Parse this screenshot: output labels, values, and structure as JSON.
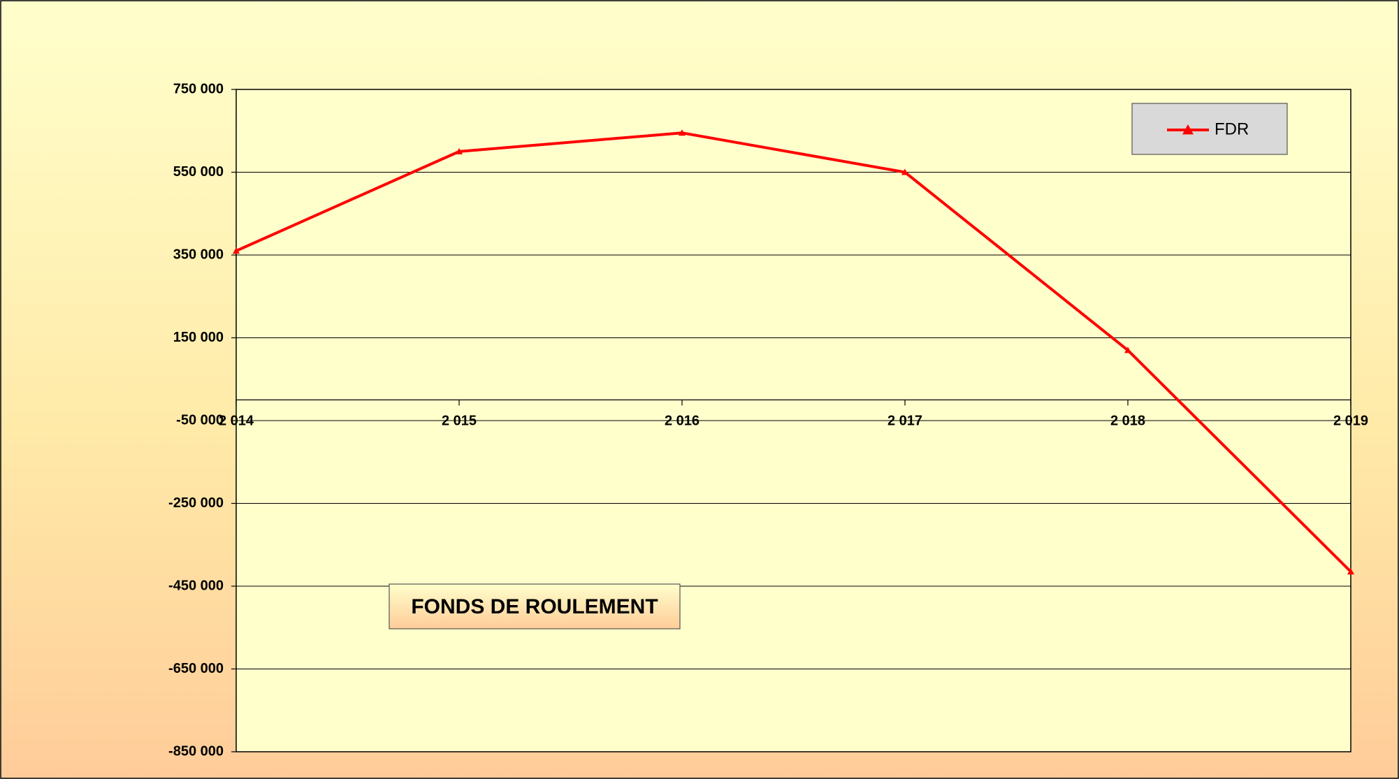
{
  "chart_data": {
    "type": "line",
    "title": "FONDS DE ROULEMENT",
    "categories": [
      "2 014",
      "2 015",
      "2 016",
      "2 017",
      "2 018",
      "2 019"
    ],
    "series": [
      {
        "name": "FDR",
        "color": "#ff0000",
        "values": [
          360000,
          600000,
          645000,
          550000,
          120000,
          -415000
        ]
      }
    ],
    "ylim": [
      -850000,
      750000
    ],
    "yticks": [
      {
        "value": -850000,
        "label": "-850 000"
      },
      {
        "value": -650000,
        "label": "-650 000"
      },
      {
        "value": -450000,
        "label": "-450 000"
      },
      {
        "value": -250000,
        "label": "-250 000"
      },
      {
        "value": -50000,
        "label": "-50 000"
      },
      {
        "value": 150000,
        "label": "150 000"
      },
      {
        "value": 350000,
        "label": "350 000"
      },
      {
        "value": 550000,
        "label": "550 000"
      },
      {
        "value": 750000,
        "label": "750 000"
      }
    ],
    "grid": true,
    "legend": "upper right"
  }
}
